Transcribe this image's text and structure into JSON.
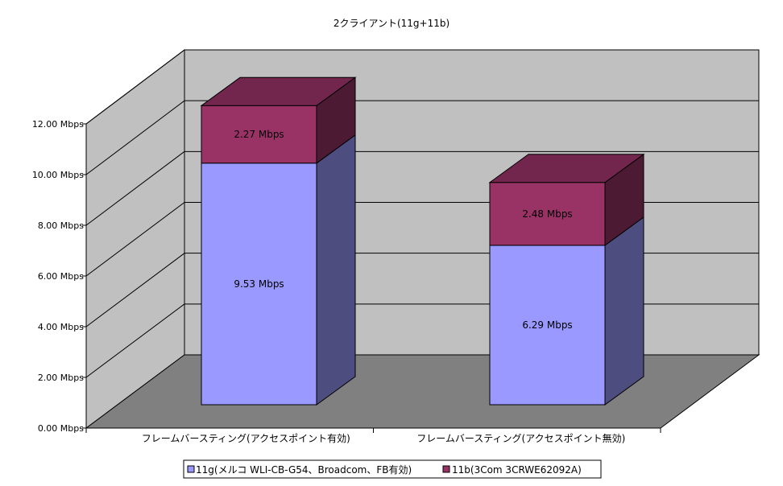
{
  "chart_data": {
    "type": "bar",
    "stacked": true,
    "three_d": true,
    "title": "2クライアント(11g+11b)",
    "categories": [
      "フレームバースティング(アクセスポイント有効)",
      "フレームバースティング(アクセスポイント無効)"
    ],
    "series": [
      {
        "name": "11g(メルコ WLI-CB-G54、Broadcom、FB有効)",
        "values": [
          9.53,
          6.29
        ],
        "data_labels": [
          "9.53 Mbps",
          "6.29 Mbps"
        ],
        "color": "#9999ff"
      },
      {
        "name": "11b(3Com 3CRWE62092A)",
        "values": [
          2.27,
          2.48
        ],
        "data_labels": [
          "2.27 Mbps",
          "2.48 Mbps"
        ],
        "color": "#993366"
      }
    ],
    "ylim": [
      0,
      12
    ],
    "yticks": [
      0,
      2,
      4,
      6,
      8,
      10,
      12
    ],
    "ytick_labels": [
      "0.00 Mbps",
      "2.00 Mbps",
      "4.00 Mbps",
      "6.00 Mbps",
      "8.00 Mbps",
      "10.00 Mbps",
      "12.00 Mbps"
    ],
    "grid": true,
    "legend_position": "bottom",
    "wall_color": "#c0c0c0",
    "floor_color": "#808080"
  }
}
